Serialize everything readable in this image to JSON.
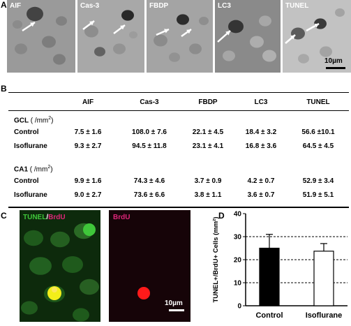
{
  "panel_a": {
    "letter": "A",
    "images": [
      {
        "label": "AIF"
      },
      {
        "label": "Cas-3"
      },
      {
        "label": "FBDP"
      },
      {
        "label": "LC3"
      },
      {
        "label": "TUNEL"
      }
    ],
    "scale_bar_label": "10µm"
  },
  "panel_b": {
    "letter": "B",
    "columns": [
      "AIF",
      "Cas-3",
      "FBDP",
      "LC3",
      "TUNEL"
    ],
    "sections": [
      {
        "title": "GCL",
        "unit": "( /mm",
        "unit_sup": "2",
        "unit_close": ")",
        "rows": [
          {
            "label": "Control",
            "values": [
              "7.5 ± 1.6",
              "108.0 ± 7.6",
              "22.1 ± 4.5",
              "18.4 ± 3.2",
              "56.6 ±10.1"
            ]
          },
          {
            "label": "Isoflurane",
            "values": [
              "9.3 ± 2.7",
              "94.5 ± 11.8",
              "23.1 ± 4.1",
              "16.8 ± 3.6",
              "64.5 ± 4.5"
            ]
          }
        ]
      },
      {
        "title": "CA1",
        "unit": " /mm",
        "unit_sup": "2",
        "unit_close": ")",
        "unit_open": "(",
        "rows": [
          {
            "label": "Control",
            "values": [
              "9.9 ± 1.6",
              "74.3 ± 4.6",
              "3.7 ± 0.9",
              "4.2 ± 0.7",
              "52.9 ± 3.4"
            ]
          },
          {
            "label": "Isoflurane",
            "values": [
              "9.0 ± 2.7",
              "73.6 ± 6.6",
              "3.8 ± 1.1",
              "3.6 ± 0.7",
              "51.9 ± 5.1"
            ]
          }
        ]
      }
    ]
  },
  "panel_c": {
    "letter": "C",
    "left_label_a": "TUNEL",
    "left_label_sep": "/",
    "left_label_b": "BrdU",
    "right_label": "BrdU",
    "scale_bar_label": "10µm",
    "colors": {
      "green": "#3fc63a",
      "magenta": "#e0267a",
      "red": "#ff1a1a",
      "yellow": "#f2ee1a"
    }
  },
  "panel_d": {
    "letter": "D"
  },
  "chart_data": {
    "type": "bar",
    "categories": [
      "Control",
      "Isoflurane"
    ],
    "values": [
      25,
      23.7
    ],
    "errors": [
      6,
      3.3
    ],
    "bar_fill": [
      "#000000",
      "#ffffff"
    ],
    "ylabel": "TUNEL+/BrdU+ Cells (mm²)",
    "ylim": [
      0,
      40
    ],
    "yticks": [
      0,
      10,
      20,
      30,
      40
    ],
    "gridlines": [
      10,
      20,
      30
    ],
    "grid": "dashed horizontal"
  }
}
